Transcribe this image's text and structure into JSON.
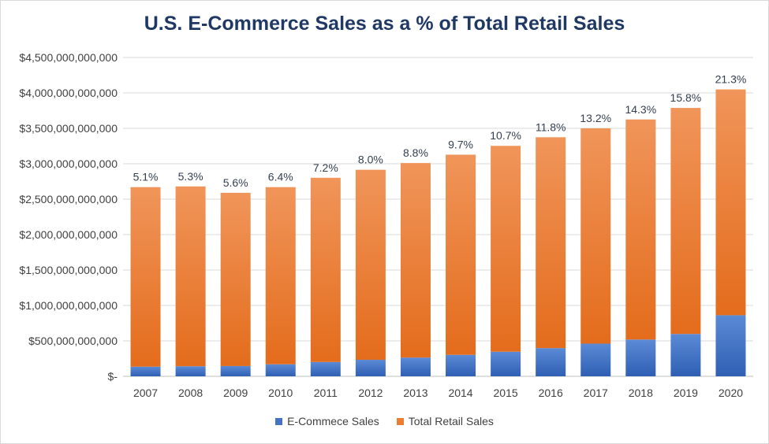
{
  "chart_data": {
    "type": "bar",
    "stacked": true,
    "title": "U.S. E-Commerce Sales as a % of Total Retail Sales",
    "categories": [
      "2007",
      "2008",
      "2009",
      "2010",
      "2011",
      "2012",
      "2013",
      "2014",
      "2015",
      "2016",
      "2017",
      "2018",
      "2019",
      "2020"
    ],
    "series": [
      {
        "name": "E-Commece Sales",
        "color": "#4472c4",
        "values": [
          136000000000,
          142000000000,
          145000000000,
          170000000000,
          202000000000,
          233000000000,
          264000000000,
          303000000000,
          347000000000,
          398000000000,
          461000000000,
          519000000000,
          598000000000,
          862000000000
        ]
      },
      {
        "name": "Total Retail Sales",
        "color": "#ed7d31",
        "values": [
          2534000000000,
          2538000000000,
          2445000000000,
          2500000000000,
          2600000000000,
          2682000000000,
          2746000000000,
          2825000000000,
          2906000000000,
          2976000000000,
          3039000000000,
          3106000000000,
          3190000000000,
          3187000000000
        ]
      }
    ],
    "data_labels": [
      "5.1%",
      "5.3%",
      "5.6%",
      "6.4%",
      "7.2%",
      "8.0%",
      "8.8%",
      "9.7%",
      "10.7%",
      "11.8%",
      "13.2%",
      "14.3%",
      "15.8%",
      "21.3%"
    ],
    "ylim": [
      0,
      4500000000000
    ],
    "y_ticks": [
      {
        "value": 0,
        "label": "$-"
      },
      {
        "value": 500000000000,
        "label": "$500,000,000,000"
      },
      {
        "value": 1000000000000,
        "label": "$1,000,000,000,000"
      },
      {
        "value": 1500000000000,
        "label": "$1,500,000,000,000"
      },
      {
        "value": 2000000000000,
        "label": "$2,000,000,000,000"
      },
      {
        "value": 2500000000000,
        "label": "$2,500,000,000,000"
      },
      {
        "value": 3000000000000,
        "label": "$3,000,000,000,000"
      },
      {
        "value": 3500000000000,
        "label": "$3,500,000,000,000"
      },
      {
        "value": 4000000000000,
        "label": "$4,000,000,000,000"
      },
      {
        "value": 4500000000000,
        "label": "$4,500,000,000,000"
      }
    ],
    "grid": true,
    "legend_position": "bottom"
  }
}
